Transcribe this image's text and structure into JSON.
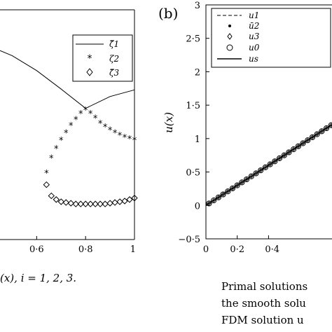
{
  "panel_label": "(b)",
  "captions": {
    "left": "(x), i = 1, 2, 3.",
    "right_line1": "Primal solutions",
    "right_line2": "the smooth solu",
    "right_line3": "FDM solution u"
  },
  "chart_data": [
    {
      "type": "scatter",
      "title": "",
      "xlabel": "",
      "ylabel": "",
      "xlim": [
        0.45,
        1.0
      ],
      "x_ticks": [
        "0·6",
        "0·8",
        "1"
      ],
      "legend_position": "top-right",
      "series": [
        {
          "name": "ζ̄1",
          "style": "solid line",
          "x": [
            0.45,
            0.5,
            0.6,
            0.7,
            0.8,
            0.9,
            1.0
          ],
          "y": [
            2.05,
            1.98,
            1.78,
            1.53,
            1.27,
            1.43,
            1.52
          ]
        },
        {
          "name": "ζ2",
          "style": "asterisk",
          "x": [
            0.64,
            0.66,
            0.68,
            0.7,
            0.72,
            0.74,
            0.76,
            0.78,
            0.8,
            0.82,
            0.84,
            0.86,
            0.88,
            0.9,
            0.92,
            0.94,
            0.96,
            0.98,
            1.0
          ],
          "y": [
            0.4,
            0.6,
            0.73,
            0.84,
            0.94,
            1.04,
            1.12,
            1.2,
            1.25,
            1.2,
            1.14,
            1.07,
            1.02,
            0.98,
            0.94,
            0.91,
            0.88,
            0.86,
            0.84
          ]
        },
        {
          "name": "ζ̄3",
          "style": "diamond",
          "x": [
            0.64,
            0.66,
            0.68,
            0.7,
            0.72,
            0.74,
            0.76,
            0.78,
            0.8,
            0.82,
            0.84,
            0.86,
            0.88,
            0.9,
            0.92,
            0.94,
            0.96,
            0.98,
            1.0
          ],
          "y": [
            0.24,
            0.09,
            0.04,
            0.01,
            0.0,
            -0.01,
            -0.02,
            -0.02,
            -0.02,
            -0.02,
            -0.02,
            -0.02,
            -0.02,
            -0.01,
            0.0,
            0.01,
            0.02,
            0.04,
            0.06
          ]
        }
      ]
    },
    {
      "type": "line",
      "title": "",
      "xlabel": "",
      "ylabel": "u(x)",
      "xlim": [
        0,
        0.85
      ],
      "ylim": [
        -0.5,
        3
      ],
      "x_ticks": [
        "0",
        "0·2",
        "0·4"
      ],
      "y_ticks": [
        "−0·5",
        "0",
        "0·5",
        "1",
        "1·5",
        "2",
        "2·5",
        "3"
      ],
      "legend_position": "top-right",
      "series": [
        {
          "name": "u1",
          "style": "dashed line",
          "x": [
            0,
            0.85
          ],
          "y": [
            0,
            1.275
          ]
        },
        {
          "name": "ū2",
          "style": "dots",
          "x": [
            0.02,
            0.05,
            0.08,
            0.11,
            0.14,
            0.17,
            0.2,
            0.23,
            0.26,
            0.29,
            0.32,
            0.35,
            0.38,
            0.41,
            0.44,
            0.47,
            0.5,
            0.53,
            0.56,
            0.59,
            0.62,
            0.65,
            0.68,
            0.71,
            0.74,
            0.77,
            0.8,
            0.83
          ],
          "y": [
            0.03,
            0.075,
            0.12,
            0.165,
            0.21,
            0.255,
            0.3,
            0.345,
            0.39,
            0.435,
            0.48,
            0.525,
            0.57,
            0.615,
            0.66,
            0.705,
            0.75,
            0.795,
            0.84,
            0.885,
            0.93,
            0.975,
            1.02,
            1.065,
            1.11,
            1.155,
            1.2,
            1.245
          ]
        },
        {
          "name": "u3",
          "style": "small diamonds",
          "x": [
            0.02,
            0.05,
            0.08,
            0.11,
            0.14,
            0.17,
            0.2,
            0.23,
            0.26,
            0.29,
            0.32,
            0.35,
            0.38,
            0.41,
            0.44,
            0.47,
            0.5,
            0.53,
            0.56,
            0.59,
            0.62,
            0.65,
            0.68,
            0.71,
            0.74,
            0.77,
            0.8,
            0.83
          ],
          "y": [
            0.03,
            0.075,
            0.12,
            0.165,
            0.21,
            0.255,
            0.3,
            0.345,
            0.39,
            0.435,
            0.48,
            0.525,
            0.57,
            0.615,
            0.66,
            0.705,
            0.75,
            0.795,
            0.84,
            0.885,
            0.93,
            0.975,
            1.02,
            1.065,
            1.11,
            1.155,
            1.2,
            1.245
          ]
        },
        {
          "name": "u0",
          "style": "circles",
          "x": [
            0.02,
            0.05,
            0.08,
            0.11,
            0.14,
            0.17,
            0.2,
            0.23,
            0.26,
            0.29,
            0.32,
            0.35,
            0.38,
            0.41,
            0.44,
            0.47,
            0.5,
            0.53,
            0.56,
            0.59,
            0.62,
            0.65,
            0.68,
            0.71,
            0.74,
            0.77,
            0.8,
            0.83
          ],
          "y": [
            0.03,
            0.075,
            0.12,
            0.165,
            0.21,
            0.255,
            0.3,
            0.345,
            0.39,
            0.435,
            0.48,
            0.525,
            0.57,
            0.615,
            0.66,
            0.705,
            0.75,
            0.795,
            0.84,
            0.885,
            0.93,
            0.975,
            1.02,
            1.065,
            1.11,
            1.155,
            1.2,
            1.245
          ]
        },
        {
          "name": "us",
          "style": "solid line",
          "x": [
            0,
            0.85
          ],
          "y": [
            0,
            1.275
          ]
        }
      ]
    }
  ]
}
